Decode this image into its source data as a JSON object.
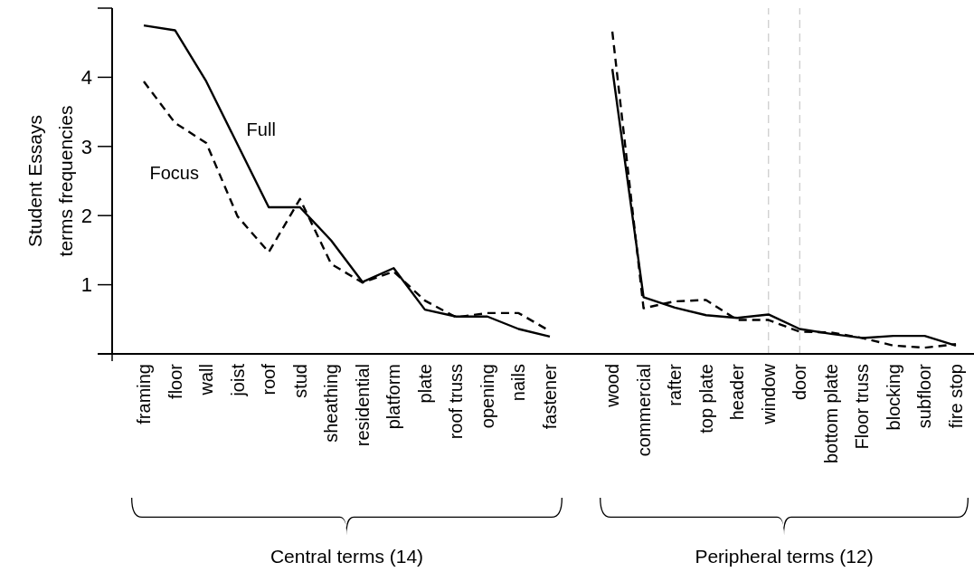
{
  "chart_data": {
    "type": "line",
    "ylabel": "Student Essays\nterms frequencies",
    "categories": [
      "framing",
      "floor",
      "wall",
      "joist",
      "roof",
      "stud",
      "sheathing",
      "residential",
      "platform",
      "plate",
      "roof truss",
      "opening",
      "nails",
      "fastener",
      null,
      "wood",
      "commercial",
      "rafter",
      "top plate",
      "header",
      "window",
      "door",
      "bottom plate",
      "Floor truss",
      "blocking",
      "subfloor",
      "fire stop"
    ],
    "series": [
      {
        "name": "Full",
        "color": "#000000",
        "line_style": "solid",
        "values": [
          4.75,
          4.68,
          3.94,
          3.03,
          2.12,
          2.12,
          1.64,
          1.04,
          1.24,
          0.64,
          0.54,
          0.54,
          0.36,
          0.25,
          null,
          4.12,
          0.82,
          0.67,
          0.56,
          0.52,
          0.57,
          0.36,
          0.29,
          0.23,
          0.26,
          0.26,
          0.12
        ]
      },
      {
        "name": "Focus",
        "color": "#000000",
        "line_style": "dashed",
        "values": [
          3.94,
          3.34,
          3.05,
          1.99,
          1.47,
          2.24,
          1.3,
          1.03,
          1.19,
          0.77,
          0.53,
          0.59,
          0.59,
          0.33,
          null,
          4.66,
          0.66,
          0.76,
          0.78,
          0.49,
          0.49,
          0.32,
          0.31,
          0.23,
          0.12,
          0.09,
          0.14
        ]
      }
    ],
    "ylim": [
      0,
      5
    ],
    "yticks": [
      {
        "value": 0,
        "label": null
      },
      1,
      2,
      3,
      4,
      {
        "value": 5,
        "label": null
      }
    ],
    "grid": false,
    "legend": false,
    "marker": "none",
    "ref_lines": [
      {
        "axis": "x",
        "value": "window",
        "color": "#c8c8c8",
        "line_style": "dashed"
      },
      {
        "axis": "x",
        "value": "door",
        "color": "#c8c8c8",
        "line_style": "dashed"
      }
    ],
    "annotations": [
      "Central terms (14)",
      "Peripheral terms (12)"
    ]
  }
}
